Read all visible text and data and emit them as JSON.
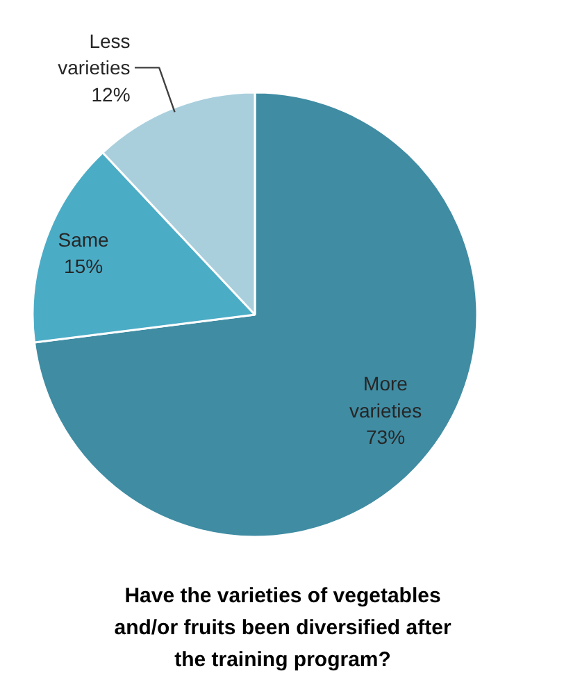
{
  "chart_data": {
    "type": "pie",
    "title": "Have the varieties of vegetables and/or fruits been diversified after the training program?",
    "categories": [
      "More varieties",
      "Same",
      "Less varieties"
    ],
    "values": [
      73,
      15,
      12
    ],
    "colors": [
      "#3f8ca3",
      "#4bacc6",
      "#a9cfdd"
    ],
    "value_labels": [
      "73%",
      "15%",
      "12%"
    ]
  }
}
